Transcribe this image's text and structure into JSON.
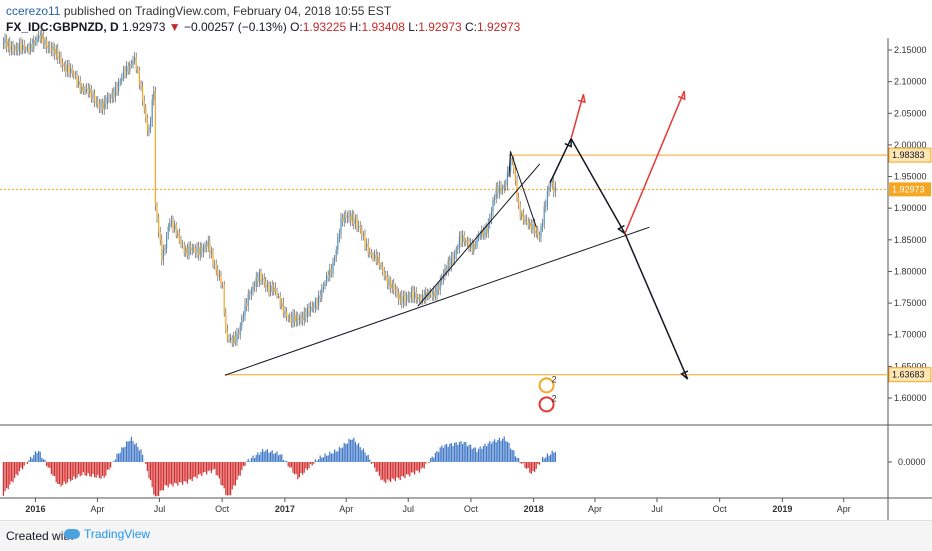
{
  "header": {
    "author": "ccerezo11",
    "published_text": "published on TradingView.com, February 04, 2018 10:55 EST",
    "symbol": "FX_IDC:GBPNZD, D",
    "last": "1.92973",
    "change": "−0.00257 (−0.13%)",
    "o_label": "O:",
    "o_value": "1.93225",
    "h_label": "H:",
    "h_value": "1.93408",
    "l_label": "L:",
    "l_value": "1.92973",
    "c_label": "C:",
    "c_value": "1.92973"
  },
  "footer": {
    "created_with": "Created with",
    "brand": "TradingView"
  },
  "colors": {
    "up": "#4a90c4",
    "down": "#c62828",
    "orange": "#f5a623",
    "red_arrow": "#e53935"
  },
  "chart_data": {
    "type": "line",
    "title": "FX_IDC:GBPNZD, D",
    "x_ticks": [
      "2016",
      "Apr",
      "Jul",
      "Oct",
      "2017",
      "Apr",
      "Jul",
      "Oct",
      "2018",
      "Apr",
      "Jul",
      "Oct",
      "2019",
      "Apr"
    ],
    "y_ticks": [
      "2.15000",
      "2.10000",
      "2.05000",
      "2.00000",
      "1.95000",
      "1.90000",
      "1.85000",
      "1.80000",
      "1.75000",
      "1.70000",
      "1.65000",
      "1.60000"
    ],
    "ylim": [
      1.565,
      2.17
    ],
    "price_series": [
      [
        "2015-11-15",
        2.16
      ],
      [
        "2015-12-15",
        2.15
      ],
      [
        "2016-01-10",
        2.17
      ],
      [
        "2016-02-10",
        2.13
      ],
      [
        "2016-03-10",
        2.09
      ],
      [
        "2016-04-10",
        2.06
      ],
      [
        "2016-05-10",
        2.11
      ],
      [
        "2016-05-25",
        2.14
      ],
      [
        "2016-06-15",
        2.02
      ],
      [
        "2016-06-23",
        2.09
      ],
      [
        "2016-06-25",
        1.9
      ],
      [
        "2016-07-05",
        1.82
      ],
      [
        "2016-07-15",
        1.88
      ],
      [
        "2016-08-10",
        1.83
      ],
      [
        "2016-09-10",
        1.84
      ],
      [
        "2016-10-01",
        1.78
      ],
      [
        "2016-10-07",
        1.69
      ],
      [
        "2016-10-25",
        1.7
      ],
      [
        "2016-11-10",
        1.77
      ],
      [
        "2016-11-25",
        1.79
      ],
      [
        "2016-12-15",
        1.77
      ],
      [
        "2017-01-10",
        1.72
      ],
      [
        "2017-02-10",
        1.74
      ],
      [
        "2017-03-10",
        1.8
      ],
      [
        "2017-03-25",
        1.88
      ],
      [
        "2017-04-10",
        1.89
      ],
      [
        "2017-05-01",
        1.84
      ],
      [
        "2017-05-25",
        1.8
      ],
      [
        "2017-06-15",
        1.76
      ],
      [
        "2017-07-10",
        1.76
      ],
      [
        "2017-08-05",
        1.76
      ],
      [
        "2017-08-25",
        1.8
      ],
      [
        "2017-09-15",
        1.85
      ],
      [
        "2017-10-05",
        1.84
      ],
      [
        "2017-10-25",
        1.87
      ],
      [
        "2017-11-05",
        1.92
      ],
      [
        "2017-11-20",
        1.94
      ],
      [
        "2017-11-30",
        1.98
      ],
      [
        "2017-12-10",
        1.9
      ],
      [
        "2017-12-25",
        1.87
      ],
      [
        "2018-01-10",
        1.86
      ],
      [
        "2018-01-25",
        1.94
      ],
      [
        "2018-02-04",
        1.92973
      ]
    ],
    "oscillator_series": [
      [
        "2015-11-15",
        -0.8
      ],
      [
        "2015-12-10",
        -0.2
      ],
      [
        "2016-01-05",
        0.3
      ],
      [
        "2016-02-05",
        -0.6
      ],
      [
        "2016-03-10",
        -0.3
      ],
      [
        "2016-04-10",
        -0.4
      ],
      [
        "2016-05-01",
        0.2
      ],
      [
        "2016-05-20",
        0.6
      ],
      [
        "2016-06-05",
        0.25
      ],
      [
        "2016-06-25",
        -0.9
      ],
      [
        "2016-07-10",
        -0.6
      ],
      [
        "2016-08-10",
        -0.5
      ],
      [
        "2016-09-01",
        -0.3
      ],
      [
        "2016-09-20",
        -0.2
      ],
      [
        "2016-10-10",
        -0.9
      ],
      [
        "2016-11-05",
        0.0
      ],
      [
        "2016-12-01",
        0.3
      ],
      [
        "2016-12-25",
        0.2
      ],
      [
        "2017-01-20",
        -0.4
      ],
      [
        "2017-02-20",
        0.1
      ],
      [
        "2017-03-20",
        0.3
      ],
      [
        "2017-04-10",
        0.6
      ],
      [
        "2017-05-01",
        0.2
      ],
      [
        "2017-05-25",
        -0.5
      ],
      [
        "2017-06-20",
        -0.4
      ],
      [
        "2017-07-20",
        -0.2
      ],
      [
        "2017-08-20",
        0.4
      ],
      [
        "2017-09-20",
        0.5
      ],
      [
        "2017-10-10",
        0.3
      ],
      [
        "2017-10-30",
        0.5
      ],
      [
        "2017-11-20",
        0.6
      ],
      [
        "2017-12-10",
        0.05
      ],
      [
        "2017-12-30",
        -0.3
      ],
      [
        "2018-01-15",
        0.1
      ],
      [
        "2018-02-04",
        0.3
      ]
    ],
    "oscillator_ticks": [
      "0.0000"
    ],
    "current_price": {
      "value": 1.92973,
      "label": "1.92973"
    },
    "horizontal_levels": [
      {
        "value": 1.98383,
        "label": "1.98383",
        "from": "2017-11-25"
      },
      {
        "value": 1.63683,
        "label": "1.63683",
        "from": "2016-10-05"
      }
    ],
    "trendlines": [
      {
        "from": [
          "2016-10-05",
          1.636
        ],
        "to": [
          "2018-06-20",
          1.87
        ]
      },
      {
        "from": [
          "2017-07-15",
          1.745
        ],
        "to": [
          "2018-01-10",
          1.97
        ]
      },
      {
        "from": [
          "2017-11-28",
          1.99
        ],
        "to": [
          "2018-01-05",
          1.87
        ]
      },
      {
        "from": [
          "2017-11-28",
          1.99
        ],
        "to": [
          "2017-11-26",
          1.95
        ]
      }
    ],
    "projection_black": [
      [
        "2018-01-25",
        1.94
      ],
      [
        "2018-02-25",
        2.01
      ],
      [
        "2018-05-15",
        1.86
      ],
      [
        "2018-08-15",
        1.63
      ]
    ],
    "projection_red": [
      {
        "from": [
          "2018-02-25",
          2.01
        ],
        "to": [
          "2018-03-15",
          2.08
        ]
      },
      {
        "from": [
          "2018-05-15",
          1.86
        ],
        "to": [
          "2018-08-10",
          2.085
        ]
      }
    ],
    "event_markers": [
      {
        "date": "2018-01-20",
        "value": 1.62,
        "label": "2",
        "color": "#f5a623"
      },
      {
        "date": "2018-01-20",
        "value": 1.59,
        "label": "2",
        "color": "#e53935"
      }
    ]
  }
}
